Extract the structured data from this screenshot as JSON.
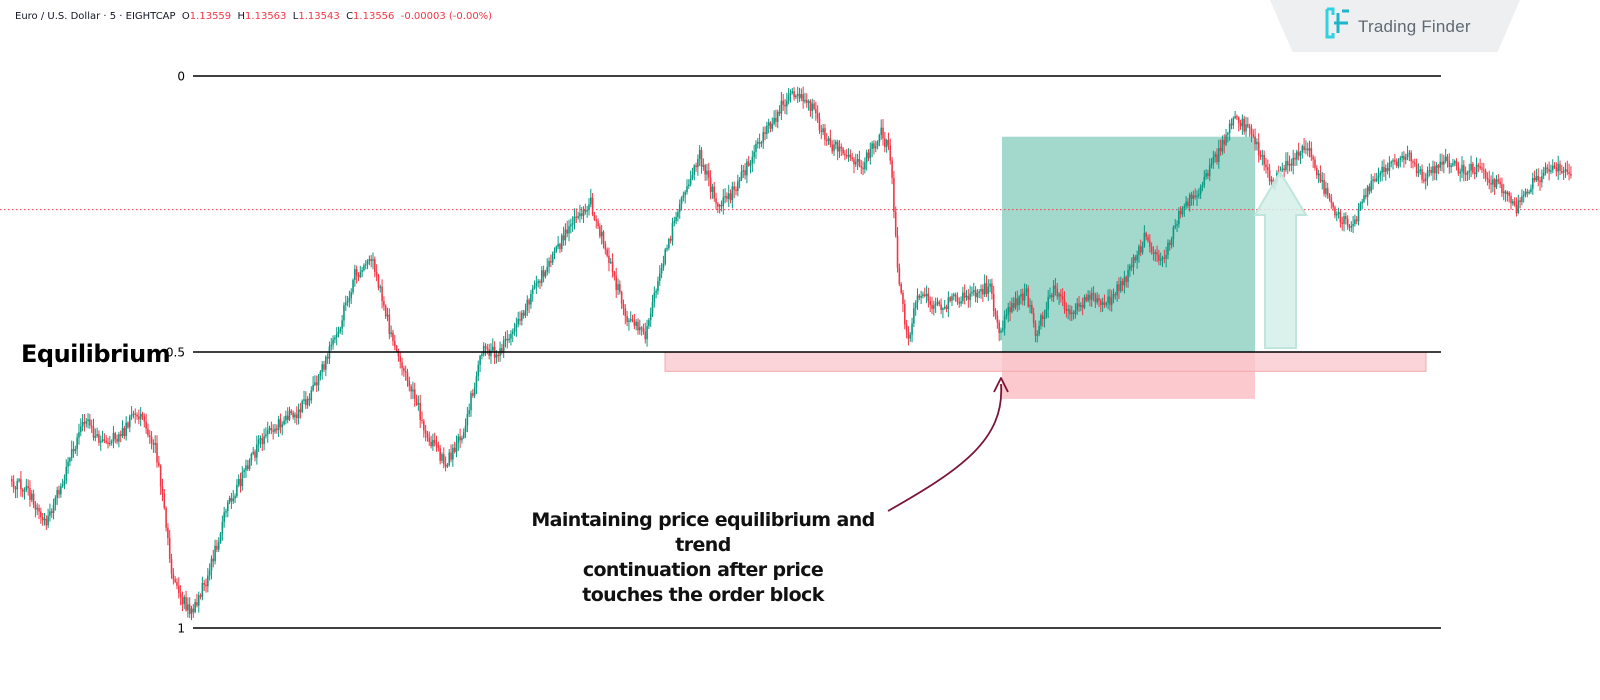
{
  "header": {
    "symbol": "Euro / U.S. Dollar · 5 · EIGHTCAP",
    "o_label": "O",
    "o_value": "1.13559",
    "h_label": "H",
    "h_value": "1.13563",
    "l_label": "L",
    "l_value": "1.13543",
    "c_label": "C",
    "c_value": "1.13556",
    "change": "-0.00003 (-0.00%)"
  },
  "brand": {
    "name": "Trading Finder"
  },
  "labels": {
    "equilibrium": "Equilibrium",
    "annotation_lines": [
      "Maintaining price equilibrium and trend",
      "continuation after price",
      "touches the order block"
    ]
  },
  "colors": {
    "bull": "#089981",
    "bear": "#f23645",
    "order_block": "#f8c6cb",
    "target_box": "#a3d8cd",
    "arrow_body": "#d5efe9",
    "curve": "#7b1538",
    "fib_line": "#000000",
    "price_line": "#f23645"
  },
  "chart_data": {
    "type": "candlestick",
    "symbol": "EURUSD",
    "timeframe": "5",
    "fib_levels": [
      {
        "level": 0,
        "label": "0"
      },
      {
        "level": 0.5,
        "label": "0.5"
      },
      {
        "level": 1,
        "label": "1"
      }
    ],
    "anchors": [
      [
        0,
        0.73
      ],
      [
        10,
        0.755
      ],
      [
        20,
        0.815
      ],
      [
        30,
        0.725
      ],
      [
        40,
        0.625
      ],
      [
        50,
        0.66
      ],
      [
        60,
        0.655
      ],
      [
        70,
        0.61
      ],
      [
        80,
        0.665
      ],
      [
        90,
        0.92
      ],
      [
        100,
        0.975
      ],
      [
        110,
        0.895
      ],
      [
        120,
        0.775
      ],
      [
        130,
        0.715
      ],
      [
        140,
        0.65
      ],
      [
        150,
        0.625
      ],
      [
        160,
        0.605
      ],
      [
        170,
        0.545
      ],
      [
        180,
        0.47
      ],
      [
        190,
        0.36
      ],
      [
        200,
        0.335
      ],
      [
        210,
        0.475
      ],
      [
        220,
        0.56
      ],
      [
        230,
        0.65
      ],
      [
        240,
        0.705
      ],
      [
        250,
        0.64
      ],
      [
        260,
        0.5
      ],
      [
        270,
        0.5
      ],
      [
        280,
        0.445
      ],
      [
        290,
        0.375
      ],
      [
        300,
        0.325
      ],
      [
        310,
        0.26
      ],
      [
        320,
        0.23
      ],
      [
        330,
        0.335
      ],
      [
        340,
        0.44
      ],
      [
        350,
        0.47
      ],
      [
        360,
        0.335
      ],
      [
        370,
        0.215
      ],
      [
        380,
        0.145
      ],
      [
        390,
        0.235
      ],
      [
        400,
        0.205
      ],
      [
        410,
        0.135
      ],
      [
        420,
        0.085
      ],
      [
        430,
        0.025
      ],
      [
        440,
        0.045
      ],
      [
        450,
        0.12
      ],
      [
        460,
        0.14
      ],
      [
        470,
        0.16
      ],
      [
        480,
        0.1
      ],
      [
        485,
        0.145
      ],
      [
        490,
        0.385
      ],
      [
        495,
        0.475
      ],
      [
        500,
        0.39
      ],
      [
        510,
        0.42
      ],
      [
        520,
        0.405
      ],
      [
        530,
        0.4
      ],
      [
        540,
        0.38
      ],
      [
        545,
        0.47
      ],
      [
        550,
        0.42
      ],
      [
        560,
        0.395
      ],
      [
        565,
        0.47
      ],
      [
        575,
        0.385
      ],
      [
        585,
        0.43
      ],
      [
        595,
        0.4
      ],
      [
        605,
        0.41
      ],
      [
        615,
        0.365
      ],
      [
        625,
        0.295
      ],
      [
        635,
        0.34
      ],
      [
        645,
        0.245
      ],
      [
        655,
        0.205
      ],
      [
        665,
        0.145
      ],
      [
        675,
        0.07
      ],
      [
        685,
        0.11
      ],
      [
        695,
        0.19
      ],
      [
        705,
        0.155
      ],
      [
        715,
        0.13
      ],
      [
        720,
        0.175
      ],
      [
        730,
        0.25
      ],
      [
        740,
        0.27
      ],
      [
        750,
        0.19
      ],
      [
        760,
        0.16
      ],
      [
        770,
        0.145
      ],
      [
        780,
        0.185
      ],
      [
        790,
        0.155
      ],
      [
        800,
        0.17
      ],
      [
        810,
        0.17
      ],
      [
        820,
        0.2
      ],
      [
        830,
        0.24
      ],
      [
        840,
        0.185
      ],
      [
        850,
        0.165
      ],
      [
        860,
        0.18
      ]
    ],
    "order_block": {
      "from_level": 0.5,
      "to_level": 0.535
    },
    "target_zone": {
      "from_level": 0.11,
      "to_level": 0.5
    },
    "stop_zone": {
      "from_level": 0.5,
      "to_level": 0.585
    },
    "current_price_level": 0.242
  }
}
